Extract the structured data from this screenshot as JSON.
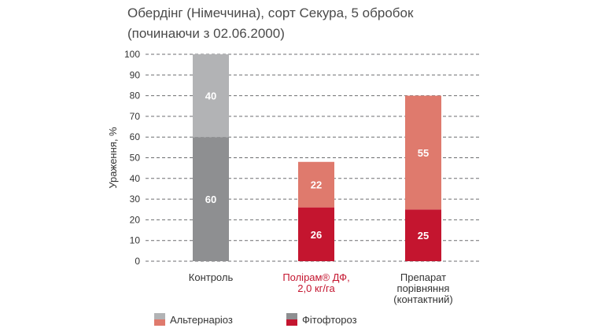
{
  "title": {
    "line1": "Обердінг (Німеччина), сорт Секура, 5 обробок",
    "line2": "(починаючи з 02.06.2000)"
  },
  "colors": {
    "control_top": "#b2b3b5",
    "control_bottom": "#8e8f91",
    "alternaria": "#df7a6d",
    "phytophthora": "#c4152f",
    "highlight_label": "#c4152f",
    "grid": "#6d6e70"
  },
  "legend": {
    "alternaria": "Альтернаріоз",
    "phytophthora": "Фітофтороз"
  },
  "chart_data": {
    "type": "bar",
    "stacked": true,
    "ylabel": "Ураження, %",
    "xlabel": "",
    "ylim": [
      0,
      100
    ],
    "yticks": [
      0,
      10,
      20,
      30,
      40,
      50,
      60,
      70,
      80,
      90,
      100
    ],
    "grid": true,
    "legend_position": "bottom",
    "categories": [
      {
        "lines": [
          "Контроль"
        ],
        "highlight": false
      },
      {
        "lines": [
          "Полірам® ДФ,",
          "2,0 кг/га"
        ],
        "highlight": true
      },
      {
        "lines": [
          "Препарат",
          "порівняння",
          "(контактний)"
        ],
        "highlight": false
      }
    ],
    "series": [
      {
        "name": "Фітофтороз",
        "values": [
          60,
          26,
          25
        ]
      },
      {
        "name": "Альтернаріоз",
        "values": [
          40,
          22,
          55
        ]
      }
    ]
  }
}
